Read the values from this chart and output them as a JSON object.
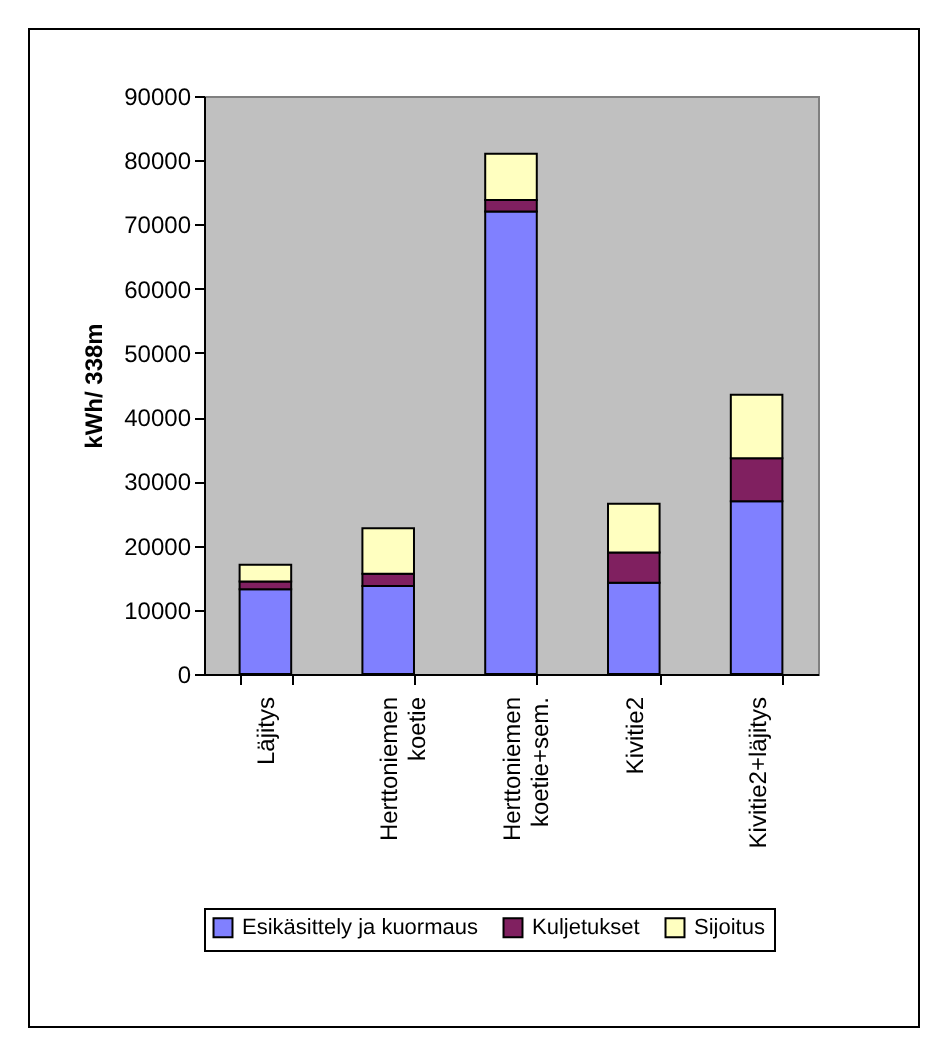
{
  "chart_data": {
    "type": "bar",
    "stacked": true,
    "ylabel": "kWh/ 338m",
    "categories": [
      "Läjitys",
      "Herttoniemen koetie",
      "Herttoniemen koetie+sem.",
      "Kivitie2",
      "Kivitie2+läjitys"
    ],
    "series": [
      {
        "name": "Esikäsittely ja kuormaus",
        "color": "#8080ff",
        "values": [
          13200,
          13700,
          72000,
          14200,
          26900
        ]
      },
      {
        "name": "Kuljetukset",
        "color": "#802060",
        "values": [
          1200,
          1900,
          1800,
          4700,
          6700
        ]
      },
      {
        "name": "Sijoitus",
        "color": "#ffffc0",
        "values": [
          2600,
          7100,
          7200,
          7600,
          9900
        ]
      }
    ],
    "ylim": [
      0,
      90000
    ],
    "yticks": [
      0,
      10000,
      20000,
      30000,
      40000,
      50000,
      60000,
      70000,
      80000,
      90000
    ],
    "grid": false,
    "legend": "bottom"
  }
}
